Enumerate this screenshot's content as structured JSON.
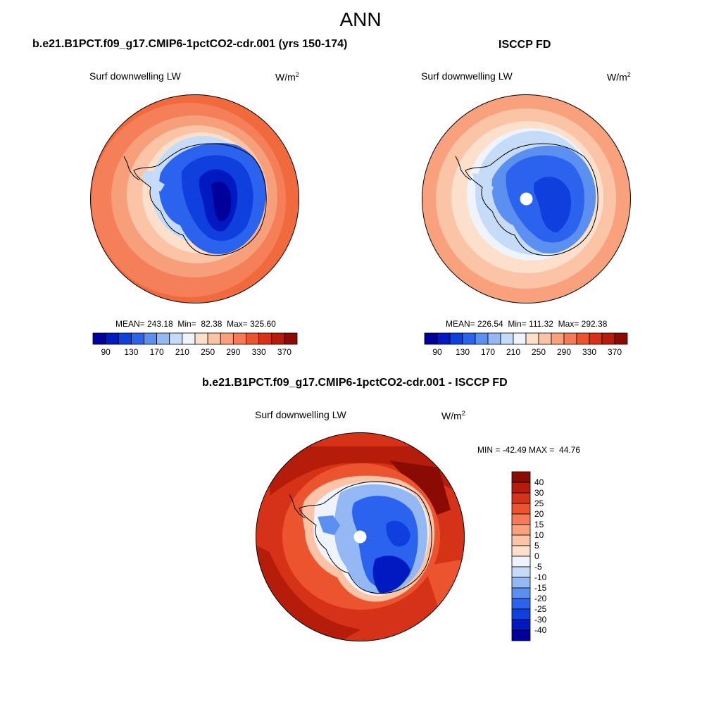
{
  "header": {
    "title": "ANN"
  },
  "panels": {
    "model": {
      "title": "b.e21.B1PCT.f09_g17.CMIP6-1pctCO2-cdr.001 (yrs 150-174)",
      "variable": "Surf downwelling LW",
      "units_base": "W/m",
      "units_exp": "2",
      "stats": "MEAN= 243.18  Min=  82.38  Max= 325.60",
      "mean": 243.18,
      "min": 82.38,
      "max": 325.6
    },
    "obs": {
      "title": "ISCCP FD",
      "variable": "Surf downwelling LW",
      "units_base": "W/m",
      "units_exp": "2",
      "stats": "MEAN= 226.54  Min= 111.32  Max= 292.38",
      "mean": 226.54,
      "min": 111.32,
      "max": 292.38
    },
    "diff": {
      "title": "b.e21.B1PCT.f09_g17.CMIP6-1pctCO2-cdr.001 - ISCCP FD",
      "variable": "Surf downwelling LW",
      "units_base": "W/m",
      "units_exp": "2",
      "stats": "MIN = -42.49 MAX =  44.76",
      "min": -42.49,
      "max": 44.76
    }
  },
  "colorbar_abs": {
    "colors": [
      "#00009a",
      "#0019c0",
      "#0f3fdc",
      "#2c63ee",
      "#5b8ff0",
      "#94b8f4",
      "#c5dbf8",
      "#eef3fc",
      "#fde0cc",
      "#fcc4a6",
      "#f9a07d",
      "#f57a55",
      "#ec5430",
      "#d63218",
      "#b51c0a",
      "#8a0a04"
    ],
    "tick_labels": [
      "90",
      "130",
      "170",
      "210",
      "250",
      "290",
      "330",
      "370"
    ]
  },
  "colorbar_diff": {
    "colors": [
      "#8a0a04",
      "#b51c0a",
      "#d63218",
      "#ec5430",
      "#f57a55",
      "#f9a07d",
      "#fcc4a6",
      "#fde0cc",
      "#eef3fc",
      "#c5dbf8",
      "#94b8f4",
      "#5b8ff0",
      "#2c63ee",
      "#0f3fdc",
      "#0019c0",
      "#00009a"
    ],
    "tick_labels": [
      "40",
      "30",
      "25",
      "20",
      "15",
      "10",
      "5",
      "0",
      "-5",
      "-10",
      "-15",
      "-20",
      "-25",
      "-30",
      "-40"
    ]
  }
}
